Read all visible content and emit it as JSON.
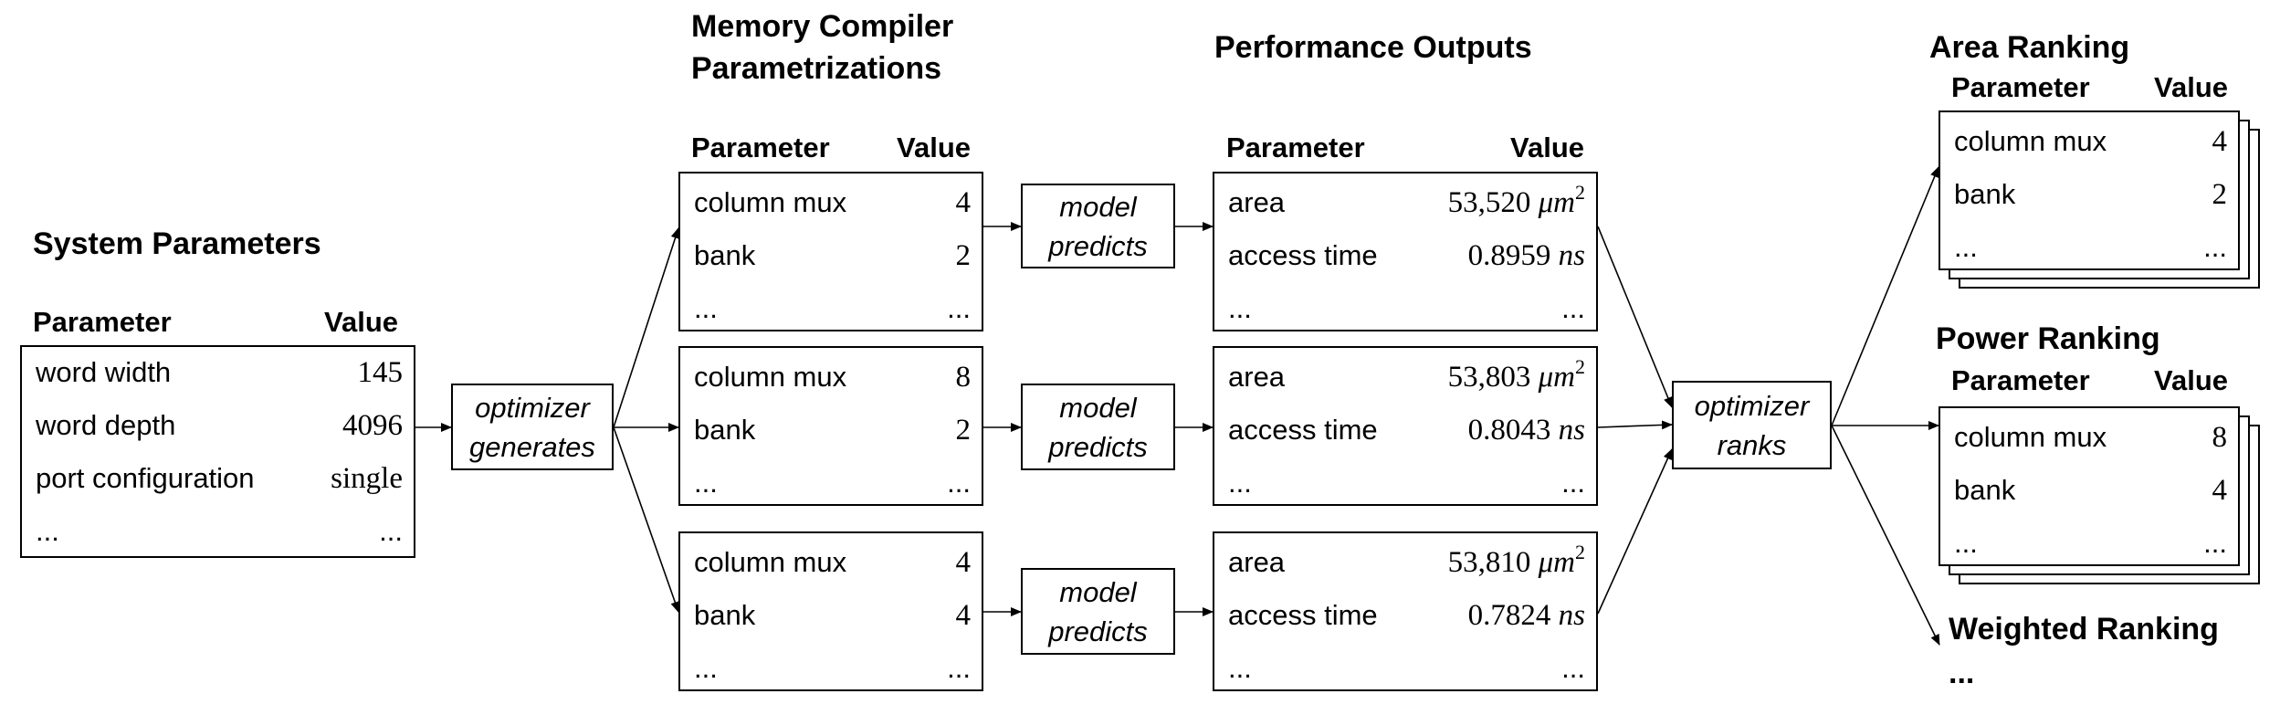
{
  "system": {
    "title": "System Parameters",
    "param_header": "Parameter",
    "value_header": "Value",
    "rows": [
      {
        "param": "word width",
        "value": "145"
      },
      {
        "param": "word depth",
        "value": "4096"
      },
      {
        "param": "port configuration",
        "value": "single"
      },
      {
        "param": "...",
        "value": "..."
      }
    ]
  },
  "generate_step": {
    "line1": "optimizer",
    "line2": "generates"
  },
  "memory": {
    "title_line1": "Memory Compiler",
    "title_line2": "Parametrizations",
    "param_header": "Parameter",
    "value_header": "Value",
    "configs": [
      {
        "rows": [
          {
            "param": "column mux",
            "value": "4"
          },
          {
            "param": "bank",
            "value": "2"
          },
          {
            "param": "...",
            "value": "..."
          }
        ]
      },
      {
        "rows": [
          {
            "param": "column mux",
            "value": "8"
          },
          {
            "param": "bank",
            "value": "2"
          },
          {
            "param": "...",
            "value": "..."
          }
        ]
      },
      {
        "rows": [
          {
            "param": "column mux",
            "value": "4"
          },
          {
            "param": "bank",
            "value": "4"
          },
          {
            "param": "...",
            "value": "..."
          }
        ]
      }
    ]
  },
  "model_step": {
    "line1": "model",
    "line2": "predicts"
  },
  "performance": {
    "title": "Performance Outputs",
    "param_header": "Parameter",
    "value_header": "Value",
    "outputs": [
      {
        "area_label": "area",
        "area_value": "53,520",
        "area_unit": "μm",
        "area_exp": "2",
        "time_label": "access time",
        "time_value": "0.8959",
        "time_unit": "ns",
        "more_param": "...",
        "more_value": "..."
      },
      {
        "area_label": "area",
        "area_value": "53,803",
        "area_unit": "μm",
        "area_exp": "2",
        "time_label": "access time",
        "time_value": "0.8043",
        "time_unit": "ns",
        "more_param": "...",
        "more_value": "..."
      },
      {
        "area_label": "area",
        "area_value": "53,810",
        "area_unit": "μm",
        "area_exp": "2",
        "time_label": "access time",
        "time_value": "0.7824",
        "time_unit": "ns",
        "more_param": "...",
        "more_value": "..."
      }
    ]
  },
  "rank_step": {
    "line1": "optimizer",
    "line2": "ranks"
  },
  "rankings": {
    "area": {
      "title": "Area Ranking",
      "param_header": "Parameter",
      "value_header": "Value",
      "rows": [
        {
          "param": "column mux",
          "value": "4"
        },
        {
          "param": "bank",
          "value": "2"
        },
        {
          "param": "...",
          "value": "..."
        }
      ]
    },
    "power": {
      "title": "Power Ranking",
      "param_header": "Parameter",
      "value_header": "Value",
      "rows": [
        {
          "param": "column mux",
          "value": "8"
        },
        {
          "param": "bank",
          "value": "4"
        },
        {
          "param": "...",
          "value": "..."
        }
      ]
    },
    "weighted": {
      "title": "Weighted Ranking",
      "more": "..."
    }
  }
}
